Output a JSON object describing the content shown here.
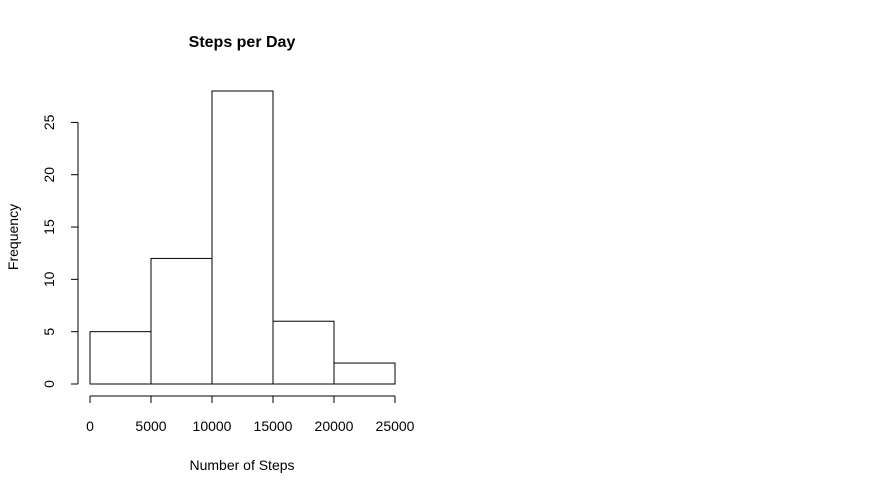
{
  "chart_data": {
    "type": "bar",
    "title": "Steps per Day",
    "xlabel": "Number of Steps",
    "ylabel": "Frequency",
    "bins": [
      {
        "from": 0,
        "to": 5000,
        "count": 5
      },
      {
        "from": 5000,
        "to": 10000,
        "count": 12
      },
      {
        "from": 10000,
        "to": 15000,
        "count": 28
      },
      {
        "from": 15000,
        "to": 20000,
        "count": 6
      },
      {
        "from": 20000,
        "to": 25000,
        "count": 2
      }
    ],
    "x_ticks": [
      0,
      5000,
      10000,
      15000,
      20000,
      25000
    ],
    "x_tick_labels": [
      "0",
      "5000",
      "10000",
      "15000",
      "20000",
      "25000"
    ],
    "y_ticks": [
      0,
      5,
      10,
      15,
      20,
      25
    ],
    "y_tick_labels": [
      "0",
      "5",
      "10",
      "15",
      "20",
      "25"
    ],
    "xlim": [
      0,
      25000
    ],
    "ylim": [
      0,
      28
    ],
    "grid": false,
    "legend": "none",
    "colors": {
      "bar_fill": "#ffffff",
      "bar_stroke": "#000000"
    }
  }
}
